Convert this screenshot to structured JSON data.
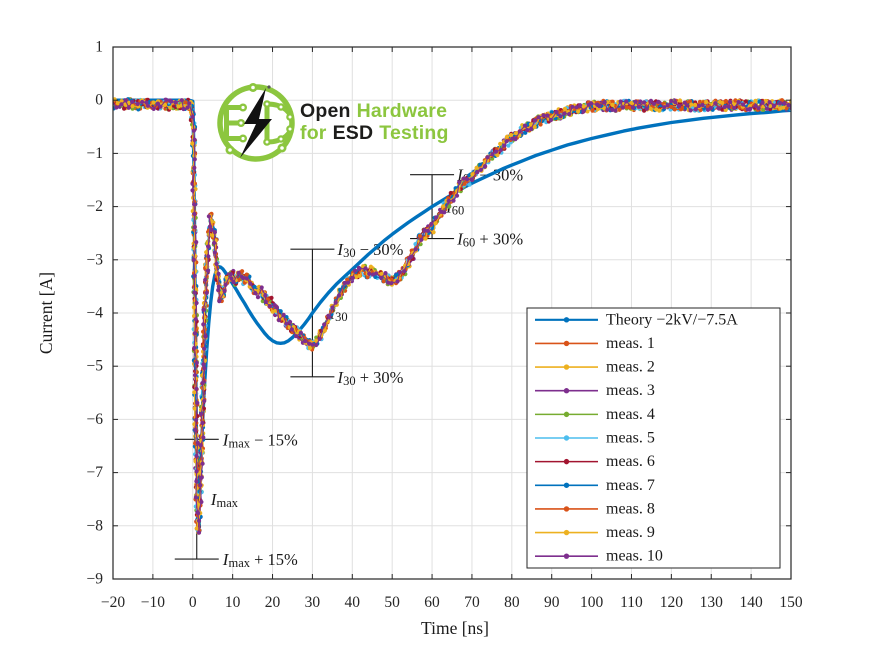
{
  "chart_data": {
    "type": "line",
    "title": "",
    "xlabel": "Time [ns]",
    "ylabel": "Current [A]",
    "xlim": [
      -20,
      150
    ],
    "ylim": [
      -9,
      1
    ],
    "xtick_step": 10,
    "ytick_step": 1,
    "grid": true,
    "legend_position": "inside-right-center",
    "series": [
      {
        "name": "Theory −2kV/−7.5A",
        "color": "#0072BD",
        "style": "line",
        "line_width": 3.4,
        "waveform": "theory",
        "seed": 0
      },
      {
        "name": "meas. 1",
        "color": "#D95319",
        "style": "dots",
        "line_width": 1.1,
        "waveform": "measured_mean",
        "seed": 1
      },
      {
        "name": "meas. 2",
        "color": "#EDB120",
        "style": "dots",
        "line_width": 1.1,
        "waveform": "measured_mean",
        "seed": 2
      },
      {
        "name": "meas. 3",
        "color": "#7E2F8E",
        "style": "dots",
        "line_width": 1.1,
        "waveform": "measured_mean",
        "seed": 3
      },
      {
        "name": "meas. 4",
        "color": "#77AC30",
        "style": "dots",
        "line_width": 1.1,
        "waveform": "measured_mean",
        "seed": 4
      },
      {
        "name": "meas. 5",
        "color": "#4DBEEE",
        "style": "dots",
        "line_width": 1.1,
        "waveform": "measured_mean",
        "seed": 5
      },
      {
        "name": "meas. 6",
        "color": "#A2142F",
        "style": "dots",
        "line_width": 1.1,
        "waveform": "measured_mean",
        "seed": 6
      },
      {
        "name": "meas. 7",
        "color": "#0072BD",
        "style": "dots",
        "line_width": 1.1,
        "waveform": "measured_mean",
        "seed": 7
      },
      {
        "name": "meas. 8",
        "color": "#D95319",
        "style": "dots",
        "line_width": 1.1,
        "waveform": "measured_mean",
        "seed": 8
      },
      {
        "name": "meas. 9",
        "color": "#EDB120",
        "style": "dots",
        "line_width": 1.1,
        "waveform": "measured_mean",
        "seed": 9
      },
      {
        "name": "meas. 10",
        "color": "#7E2F8E",
        "style": "dots",
        "line_width": 1.1,
        "waveform": "measured_mean",
        "seed": 10
      }
    ],
    "waveforms": {
      "theory": {
        "x": [
          -20,
          -10,
          -5,
          -1,
          0,
          0.3,
          0.6,
          0.9,
          1.2,
          1.4,
          1.7,
          2.1,
          2.5,
          3,
          3.5,
          4,
          4.5,
          5,
          5.5,
          6,
          6.5,
          7,
          7.5,
          8,
          9,
          10,
          11,
          12,
          13,
          14,
          15,
          16,
          17,
          18,
          19,
          20,
          21,
          22,
          23,
          24,
          25,
          26,
          27,
          28,
          29,
          30,
          32,
          34,
          36,
          38,
          40,
          42,
          44,
          46,
          48,
          50,
          52,
          54,
          56,
          58,
          60,
          62,
          64,
          66,
          68,
          70,
          72,
          74,
          76,
          78,
          80,
          82,
          84,
          86,
          88,
          90,
          92,
          94,
          96,
          98,
          100,
          104,
          108,
          112,
          116,
          120,
          124,
          128,
          132,
          136,
          140,
          144,
          148,
          150
        ],
        "y": [
          0,
          0,
          0,
          0,
          -0.02,
          -1.2,
          -3.8,
          -6.3,
          -7.4,
          -7.5,
          -7.3,
          -6.7,
          -6,
          -5.3,
          -4.7,
          -4.2,
          -3.8,
          -3.5,
          -3.3,
          -3.18,
          -3.13,
          -3.14,
          -3.17,
          -3.22,
          -3.33,
          -3.45,
          -3.57,
          -3.7,
          -3.82,
          -3.95,
          -4.07,
          -4.18,
          -4.28,
          -4.38,
          -4.46,
          -4.52,
          -4.56,
          -4.57,
          -4.56,
          -4.52,
          -4.46,
          -4.39,
          -4.3,
          -4.21,
          -4.11,
          -4,
          -3.8,
          -3.62,
          -3.46,
          -3.32,
          -3.18,
          -3.04,
          -2.9,
          -2.77,
          -2.64,
          -2.52,
          -2.41,
          -2.3,
          -2.2,
          -2.1,
          -2,
          -1.91,
          -1.82,
          -1.73,
          -1.64,
          -1.56,
          -1.49,
          -1.42,
          -1.35,
          -1.28,
          -1.22,
          -1.16,
          -1.1,
          -1.04,
          -0.99,
          -0.94,
          -0.89,
          -0.84,
          -0.8,
          -0.76,
          -0.72,
          -0.65,
          -0.58,
          -0.52,
          -0.47,
          -0.42,
          -0.38,
          -0.34,
          -0.31,
          -0.28,
          -0.25,
          -0.23,
          -0.2,
          -0.19
        ]
      },
      "measured_mean": {
        "x": [
          -20,
          -18,
          -16,
          -14,
          -12,
          -10,
          -8,
          -6,
          -4,
          -2,
          -0.5,
          0.2,
          0.5,
          0.8,
          1.1,
          1.4,
          1.7,
          2.1,
          2.5,
          2.9,
          3.3,
          3.8,
          4.4,
          5,
          5.6,
          6.2,
          7,
          7.6,
          8.4,
          9.2,
          9.8,
          10.6,
          11.4,
          12.2,
          13,
          13.8,
          14.6,
          15.4,
          16.2,
          17,
          17.8,
          18.6,
          19.4,
          20.2,
          21,
          21.8,
          22.6,
          23.4,
          24.2,
          25,
          26,
          27,
          28,
          29,
          30,
          31,
          32,
          33,
          34,
          35,
          36,
          37,
          38,
          39,
          40,
          41,
          42,
          43,
          44,
          45,
          46,
          47,
          48,
          49,
          50,
          51,
          52,
          53,
          54,
          55,
          56,
          57,
          58,
          59,
          60,
          61,
          62,
          63,
          64,
          65,
          66,
          67,
          68,
          69,
          70,
          71,
          72,
          73,
          74,
          75,
          76,
          77,
          78,
          79,
          80,
          82,
          84,
          86,
          88,
          90,
          92,
          94,
          96,
          98,
          100,
          103,
          106,
          109,
          112,
          115,
          118,
          121,
          124,
          127,
          130,
          133,
          136,
          139,
          142,
          145,
          148,
          150
        ],
        "y": [
          -0.07,
          -0.08,
          -0.07,
          -0.09,
          -0.07,
          -0.08,
          -0.07,
          -0.09,
          -0.07,
          -0.08,
          -0.08,
          -0.5,
          -3,
          -6,
          -7.7,
          -8.05,
          -7.8,
          -6.8,
          -5.6,
          -4.4,
          -3.4,
          -2.7,
          -2.22,
          -2.35,
          -2.7,
          -3.3,
          -3.7,
          -3.6,
          -3.4,
          -3.3,
          -3.28,
          -3.4,
          -3.32,
          -3.3,
          -3.38,
          -3.35,
          -3.45,
          -3.55,
          -3.62,
          -3.58,
          -3.7,
          -3.76,
          -3.8,
          -3.9,
          -3.95,
          -4.05,
          -4.1,
          -4.15,
          -4.22,
          -4.3,
          -4.35,
          -4.42,
          -4.5,
          -4.58,
          -4.62,
          -4.55,
          -4.42,
          -4.28,
          -4.1,
          -3.95,
          -3.8,
          -3.65,
          -3.52,
          -3.42,
          -3.32,
          -3.26,
          -3.22,
          -3.2,
          -3.24,
          -3.2,
          -3.26,
          -3.3,
          -3.32,
          -3.38,
          -3.42,
          -3.36,
          -3.3,
          -3.18,
          -3.05,
          -2.9,
          -2.76,
          -2.62,
          -2.52,
          -2.46,
          -2.4,
          -2.28,
          -2.14,
          -2.02,
          -1.92,
          -1.82,
          -1.72,
          -1.63,
          -1.56,
          -1.5,
          -1.42,
          -1.33,
          -1.26,
          -1.18,
          -1.1,
          -1.02,
          -0.96,
          -0.9,
          -0.83,
          -0.77,
          -0.71,
          -0.6,
          -0.5,
          -0.42,
          -0.35,
          -0.3,
          -0.26,
          -0.21,
          -0.17,
          -0.14,
          -0.12,
          -0.1,
          -0.11,
          -0.09,
          -0.11,
          -0.1,
          -0.11,
          -0.09,
          -0.1,
          -0.11,
          -0.09,
          -0.1,
          -0.09,
          -0.1,
          -0.09,
          -0.1,
          -0.09,
          -0.09
        ]
      }
    },
    "tolerance_bars": [
      {
        "t": 1,
        "top": -6.375,
        "bottom": -8.625
      },
      {
        "t": 30,
        "top": -2.8,
        "bottom": -5.2
      },
      {
        "t": 60,
        "top": -1.4,
        "bottom": -2.6
      }
    ],
    "annotations": [
      {
        "base": "I",
        "sub": "max",
        "rest": " − 15%",
        "t": 1,
        "value": -6.375,
        "dx": 26
      },
      {
        "base": "I",
        "sub": "max",
        "rest": "",
        "t": 1,
        "value": -7.5,
        "dx": 14
      },
      {
        "base": "I",
        "sub": "max",
        "rest": " + 15%",
        "t": 1,
        "value": -8.625,
        "dx": 26
      },
      {
        "base": "I",
        "sub": "30",
        "rest": " − 30%",
        "t": 30,
        "value": -2.8,
        "dx": 25
      },
      {
        "base": "I",
        "sub": "30",
        "rest": "",
        "t": 30,
        "value": -4.0,
        "dx": 17
      },
      {
        "base": "I",
        "sub": "30",
        "rest": " + 30%",
        "t": 30,
        "value": -5.2,
        "dx": 25
      },
      {
        "base": "I",
        "sub": "60",
        "rest": " − 30%",
        "t": 60,
        "value": -1.4,
        "dx": 25
      },
      {
        "base": "I",
        "sub": "60",
        "rest": "",
        "t": 60,
        "value": -2.0,
        "dx": 14
      },
      {
        "base": "I",
        "sub": "60",
        "rest": " + 30%",
        "t": 60,
        "value": -2.6,
        "dx": 25
      }
    ]
  },
  "legend": {
    "entries": [
      "Theory −2kV/−7.5A",
      "meas. 1",
      "meas. 2",
      "meas. 3",
      "meas. 4",
      "meas. 5",
      "meas. 6",
      "meas. 7",
      "meas. 8",
      "meas. 9",
      "meas. 10"
    ]
  },
  "logo": {
    "word1": "Open",
    "word2": "Hardware",
    "word3": "for",
    "word4": "ESD",
    "word5": "Testing",
    "green": "#8CC63F",
    "black": "#1D1D1B"
  },
  "colors": {
    "axis": "#262626",
    "grid": "#E0E0E0",
    "text": "#1A1A1A",
    "theory_blue": "#0072BD"
  }
}
